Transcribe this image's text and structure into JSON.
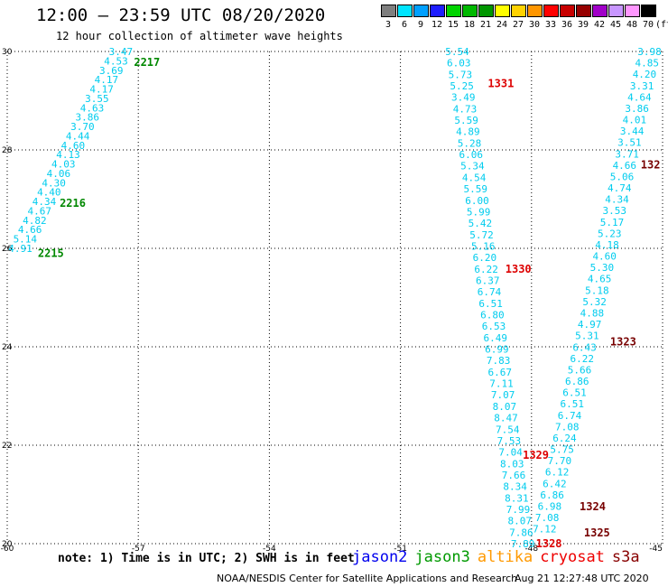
{
  "header": {
    "title": "12:00 – 23:59 UTC 08/20/2020",
    "subtitle": "12 hour collection of altimeter wave heights"
  },
  "color_scale": {
    "unit": "(ft)",
    "bins": [
      {
        "label": "3",
        "color": "#7f7f7f"
      },
      {
        "label": "6",
        "color": "#00e5ff"
      },
      {
        "label": "9",
        "color": "#00a0ff"
      },
      {
        "label": "12",
        "color": "#1e1eff"
      },
      {
        "label": "15",
        "color": "#00d400"
      },
      {
        "label": "18",
        "color": "#00b800"
      },
      {
        "label": "21",
        "color": "#009600"
      },
      {
        "label": "24",
        "color": "#ffff00"
      },
      {
        "label": "27",
        "color": "#ffd200"
      },
      {
        "label": "30",
        "color": "#ff9600"
      },
      {
        "label": "33",
        "color": "#ff0000"
      },
      {
        "label": "36",
        "color": "#c80000"
      },
      {
        "label": "39",
        "color": "#960000"
      },
      {
        "label": "42",
        "color": "#a000c8"
      },
      {
        "label": "45",
        "color": "#c896ff"
      },
      {
        "label": "48",
        "color": "#ff96ff"
      },
      {
        "label": "70",
        "color": "#000000"
      }
    ]
  },
  "chart_data": {
    "type": "scatter",
    "xlim": [
      -60,
      -45
    ],
    "ylim": [
      20,
      30
    ],
    "xticks": [
      {
        "v": -60,
        "label": "-60"
      },
      {
        "v": -57,
        "label": "-57"
      },
      {
        "v": -54,
        "label": "-54"
      },
      {
        "v": -51,
        "label": "-51"
      },
      {
        "v": -48,
        "label": "-48"
      },
      {
        "v": -45,
        "label": "-45"
      }
    ],
    "yticks": [
      {
        "v": 20,
        "label": "20"
      },
      {
        "v": 22,
        "label": "22"
      },
      {
        "v": 24,
        "label": "24"
      },
      {
        "v": 26,
        "label": "26"
      },
      {
        "v": 28,
        "label": "28"
      },
      {
        "v": 30,
        "label": "30"
      }
    ],
    "grid": true,
    "tracks": [
      {
        "color": "#00ccee",
        "start": [
          -59.7,
          26.0
        ],
        "end": [
          -57.4,
          30.0
        ],
        "values": [
          "4.91",
          "5.14",
          "4.66",
          "4.82",
          "4.67",
          "4.34",
          "4.40",
          "4.30",
          "4.06",
          "4.03",
          "4.13",
          "4.60",
          "4.44",
          "3.70",
          "3.86",
          "4.63",
          "3.55",
          "4.17",
          "4.17",
          "3.69",
          "4.53",
          "3.47"
        ]
      },
      {
        "color": "#00ccee",
        "start": [
          -48.2,
          20.0
        ],
        "end": [
          -49.7,
          30.0
        ],
        "values": [
          "7.89",
          "7.86",
          "8.07",
          "7.99",
          "8.31",
          "8.34",
          "7.66",
          "8.03",
          "7.04",
          "7.53",
          "7.54",
          "8.47",
          "8.07",
          "7.07",
          "7.11",
          "6.67",
          "7.83",
          "6.99",
          "6.49",
          "6.53",
          "6.80",
          "6.51",
          "6.74",
          "6.37",
          "6.22",
          "6.20",
          "5.16",
          "5.72",
          "5.42",
          "5.99",
          "6.00",
          "5.59",
          "4.54",
          "5.34",
          "6.06",
          "5.28",
          "4.89",
          "5.59",
          "4.73",
          "3.49",
          "5.25",
          "5.73",
          "6.03",
          "5.54"
        ]
      },
      {
        "color": "#00ccee",
        "start": [
          -47.7,
          20.3
        ],
        "end": [
          -45.3,
          30.0
        ],
        "values": [
          "7.12",
          "7.08",
          "6.98",
          "6.86",
          "6.42",
          "6.12",
          "7.70",
          "5.75",
          "6.24",
          "7.08",
          "6.74",
          "6.51",
          "6.51",
          "6.86",
          "5.66",
          "6.22",
          "6.43",
          "5.31",
          "4.97",
          "4.88",
          "5.32",
          "5.18",
          "4.65",
          "5.30",
          "4.60",
          "4.18",
          "5.23",
          "5.17",
          "3.53",
          "4.34",
          "4.74",
          "5.06",
          "4.66",
          "3.71",
          "3.51",
          "3.44",
          "4.01",
          "3.86",
          "4.64",
          "3.31",
          "4.20",
          "4.85",
          "3.98"
        ]
      }
    ],
    "pass_labels": [
      {
        "text": "2217",
        "x": -57.1,
        "y": 29.78,
        "color": "#008800"
      },
      {
        "text": "2216",
        "x": -58.8,
        "y": 26.92,
        "color": "#008800"
      },
      {
        "text": "2215",
        "x": -59.3,
        "y": 25.9,
        "color": "#008800"
      },
      {
        "text": "1331",
        "x": -49.0,
        "y": 29.35,
        "color": "#dd0000"
      },
      {
        "text": "1330",
        "x": -48.6,
        "y": 25.58,
        "color": "#dd0000"
      },
      {
        "text": "1329",
        "x": -48.2,
        "y": 21.8,
        "color": "#dd0000"
      },
      {
        "text": "1328",
        "x": -47.9,
        "y": 20.0,
        "color": "#dd0000"
      },
      {
        "text": "1325",
        "x": -46.8,
        "y": 20.22,
        "color": "#770000"
      },
      {
        "text": "1324",
        "x": -46.9,
        "y": 20.75,
        "color": "#770000"
      },
      {
        "text": "1323",
        "x": -46.2,
        "y": 24.1,
        "color": "#770000"
      },
      {
        "text": "132",
        "x": -45.5,
        "y": 27.7,
        "color": "#770000"
      }
    ]
  },
  "footer": {
    "note": "note: 1) Time is in UTC; 2) SWH is in feet",
    "legend": [
      {
        "name": "jason2",
        "color": "#0000ee"
      },
      {
        "name": "jason3",
        "color": "#009900"
      },
      {
        "name": "altika",
        "color": "#ff9900"
      },
      {
        "name": "cryosat",
        "color": "#ee0000"
      },
      {
        "name": "s3a",
        "color": "#880000"
      }
    ],
    "credit": "NOAA/NESDIS Center for Satellite Applications and Research",
    "timestamp": "Aug 21 12:27:48 UTC 2020"
  }
}
